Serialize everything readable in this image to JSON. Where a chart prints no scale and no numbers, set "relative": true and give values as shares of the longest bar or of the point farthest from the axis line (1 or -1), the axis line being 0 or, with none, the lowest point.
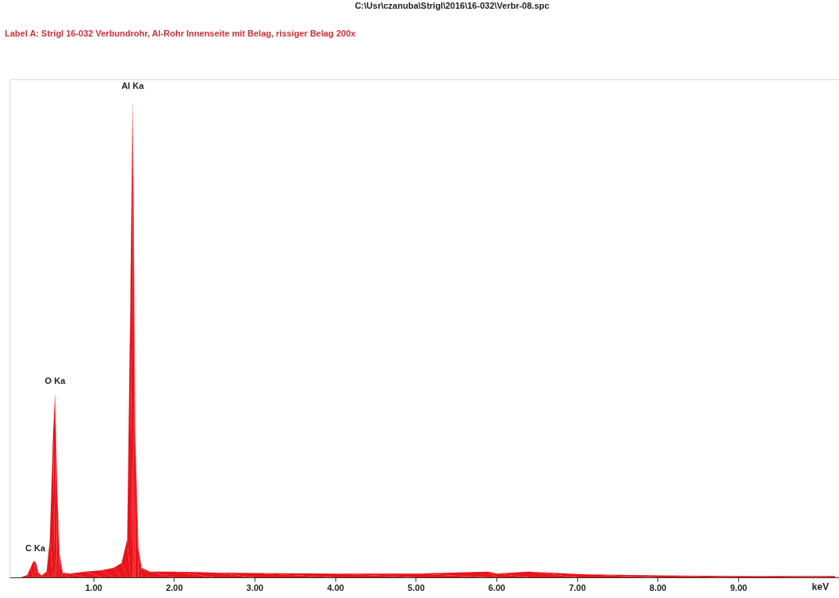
{
  "chart_data": {
    "type": "area",
    "relative": true,
    "title": "C:\\Usr\\czanuba\\Strigl\\2016\\16-032\\Verbr-08.spc",
    "subtitle": "Label A: Strigl 16-032    Verbundrohr, Al-Rohr Innenseite mit Belag,    rissiger Belag  200x",
    "xlabel": "keV",
    "x": [
      0.1,
      0.18,
      0.22,
      0.26,
      0.29,
      0.32,
      0.36,
      0.42,
      0.46,
      0.5,
      0.525,
      0.55,
      0.58,
      0.62,
      0.7,
      0.9,
      1.1,
      1.25,
      1.35,
      1.42,
      1.46,
      1.487,
      1.5,
      1.52,
      1.56,
      1.6,
      1.7,
      2.0,
      2.5,
      3.0,
      4.0,
      5.0,
      5.9,
      6.0,
      6.4,
      7.0,
      8.0,
      9.0,
      10.2
    ],
    "series": [
      {
        "color": "#e8141b",
        "values": [
          0.0,
          0.005,
          0.02,
          0.035,
          0.03,
          0.01,
          0.004,
          0.012,
          0.08,
          0.3,
          0.385,
          0.2,
          0.05,
          0.01,
          0.008,
          0.012,
          0.015,
          0.02,
          0.03,
          0.08,
          0.6,
          1.0,
          0.8,
          0.3,
          0.06,
          0.02,
          0.012,
          0.012,
          0.01,
          0.009,
          0.008,
          0.008,
          0.012,
          0.008,
          0.012,
          0.007,
          0.004,
          0.003,
          0.003
        ]
      }
    ],
    "xlim": [
      -0.04,
      10.25
    ],
    "xticks": [
      {
        "value": 1,
        "label": "1.00"
      },
      {
        "value": 2,
        "label": "2.00"
      },
      {
        "value": 3,
        "label": "3.00"
      },
      {
        "value": 4,
        "label": "4.00"
      },
      {
        "value": 5,
        "label": "5.00"
      },
      {
        "value": 6,
        "label": "6.00"
      },
      {
        "value": 7,
        "label": "7.00"
      },
      {
        "value": 8,
        "label": "8.00"
      },
      {
        "value": 9,
        "label": "9.00"
      }
    ],
    "annotations": [
      {
        "text": "C Ka",
        "x": 0.28,
        "y": 0.035
      },
      {
        "text": "O Ka",
        "x": 0.525,
        "y": 0.385
      },
      {
        "text": "Al Ka",
        "x": 1.487,
        "y": 1.0
      }
    ],
    "grid": false
  }
}
